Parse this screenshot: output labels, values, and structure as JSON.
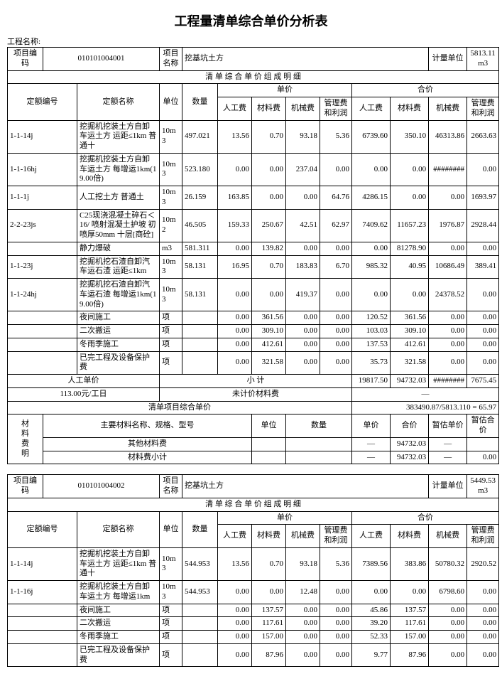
{
  "title": "工程量清单综合单价分析表",
  "project_label": "工程名称:",
  "labels": {
    "proj_code": "项目编码",
    "proj_name": "项目名称",
    "unit_meas": "计量单位",
    "detail_header": "清 单 综 合 单 价 组  成 明 细",
    "quota_no": "定额编号",
    "quota_name": "定额名称",
    "unit": "单位",
    "qty": "数量",
    "unit_price": "单价",
    "total_price": "合价",
    "labor": "人工费",
    "material": "材料费",
    "machine": "机械费",
    "mgmt": "管理费和利润",
    "labor_unit_price": "人工单价",
    "subtotal": "小   计",
    "uncounted": "未计价材料费",
    "comp_unit": "清单项目综合单价",
    "mat_detail": "材料费明",
    "main_mat": "主要材料名称、规格、型号",
    "mat_unit": "单位",
    "mat_qty": "数量",
    "mat_uprice": "单价",
    "mat_total": "合价",
    "mat_est_u": "暂估单价",
    "mat_est_t": "暂估合价",
    "other_mat": "其他材料费",
    "mat_sub": "材料费小计",
    "dash": "—"
  },
  "t1": {
    "code": "010101004001",
    "name": "挖基坑土方",
    "meas": "5813.11m3",
    "rows": [
      {
        "no": "1-1-14j",
        "name": "挖掘机挖装土方自卸车运土方 运距≤1km 普通十",
        "u": "10m3",
        "q": "497.021",
        "a": "13.56",
        "b": "0.70",
        "c": "93.18",
        "d": "5.36",
        "e": "6739.60",
        "f": "350.10",
        "g": "46313.86",
        "h": "2663.63"
      },
      {
        "no": "1-1-16hj",
        "name": "挖掘机挖装土方自卸车运土方 每增运1km(19.00倍)",
        "u": "10m3",
        "q": "523.180",
        "a": "0.00",
        "b": "0.00",
        "c": "237.04",
        "d": "0.00",
        "e": "0.00",
        "f": "0.00",
        "g": "########",
        "h": "0.00"
      },
      {
        "no": "1-1-1j",
        "name": "人工挖土方 普通土",
        "u": "10m3",
        "q": "26.159",
        "a": "163.85",
        "b": "0.00",
        "c": "0.00",
        "d": "64.76",
        "e": "4286.15",
        "f": "0.00",
        "g": "0.00",
        "h": "1693.97"
      },
      {
        "no": "2-2-23js",
        "name": "C25现浇混凝土碎石＜16/ 喷射混凝土护坡 初喷厚50mm 十层[商砼]",
        "u": "10m2",
        "q": "46.505",
        "a": "159.33",
        "b": "250.67",
        "c": "42.51",
        "d": "62.97",
        "e": "7409.62",
        "f": "11657.23",
        "g": "1976.87",
        "h": "2928.44"
      },
      {
        "no": "",
        "name": "静力爆破",
        "u": "m3",
        "q": "581.311",
        "a": "0.00",
        "b": "139.82",
        "c": "0.00",
        "d": "0.00",
        "e": "0.00",
        "f": "81278.90",
        "g": "0.00",
        "h": "0.00"
      },
      {
        "no": "1-1-23j",
        "name": "挖掘机挖石渣自卸汽车运石渣 运距≤1km",
        "u": "10m3",
        "q": "58.131",
        "a": "16.95",
        "b": "0.70",
        "c": "183.83",
        "d": "6.70",
        "e": "985.32",
        "f": "40.95",
        "g": "10686.49",
        "h": "389.41"
      },
      {
        "no": "1-1-24hj",
        "name": "挖掘机挖石渣自卸汽车运石渣 每增运1km(19.00倍)",
        "u": "10m3",
        "q": "58.131",
        "a": "0.00",
        "b": "0.00",
        "c": "419.37",
        "d": "0.00",
        "e": "0.00",
        "f": "0.00",
        "g": "24378.52",
        "h": "0.00"
      },
      {
        "no": "",
        "name": "夜间施工",
        "u": "项",
        "q": "",
        "a": "0.00",
        "b": "361.56",
        "c": "0.00",
        "d": "0.00",
        "e": "120.52",
        "f": "361.56",
        "g": "0.00",
        "h": "0.00"
      },
      {
        "no": "",
        "name": "二次搬运",
        "u": "项",
        "q": "",
        "a": "0.00",
        "b": "309.10",
        "c": "0.00",
        "d": "0.00",
        "e": "103.03",
        "f": "309.10",
        "g": "0.00",
        "h": "0.00"
      },
      {
        "no": "",
        "name": "冬雨季施工",
        "u": "项",
        "q": "",
        "a": "0.00",
        "b": "412.61",
        "c": "0.00",
        "d": "0.00",
        "e": "137.53",
        "f": "412.61",
        "g": "0.00",
        "h": "0.00"
      },
      {
        "no": "",
        "name": "已完工程及设备保护费",
        "u": "项",
        "q": "",
        "a": "0.00",
        "b": "321.58",
        "c": "0.00",
        "d": "0.00",
        "e": "35.73",
        "f": "321.58",
        "g": "0.00",
        "h": "0.00"
      }
    ],
    "labor_val": "113.00元/工日",
    "sub": {
      "e": "19817.50",
      "f": "94732.03",
      "g": "########",
      "h": "7675.45"
    },
    "comp_result": "383490.87/5813.110  = 65.97",
    "other_mat_total": "94732.03",
    "mat_sub_total": "94732.03",
    "mat_sub_est": "0.00"
  },
  "t2": {
    "code": "010101004002",
    "name": "挖基坑土方",
    "meas": "5449.53m3",
    "rows": [
      {
        "no": "1-1-14j",
        "name": "挖掘机挖装土方自卸车运土方 运距≤1km 普通十",
        "u": "10m3",
        "q": "544.953",
        "a": "13.56",
        "b": "0.70",
        "c": "93.18",
        "d": "5.36",
        "e": "7389.56",
        "f": "383.86",
        "g": "50780.32",
        "h": "2920.52"
      },
      {
        "no": "1-1-16j",
        "name": "挖掘机挖装土方自卸车运土方 每增运1km",
        "u": "10m3",
        "q": "544.953",
        "a": "0.00",
        "b": "0.00",
        "c": "12.48",
        "d": "0.00",
        "e": "0.00",
        "f": "0.00",
        "g": "6798.60",
        "h": "0.00"
      },
      {
        "no": "",
        "name": "夜间施工",
        "u": "项",
        "q": "",
        "a": "0.00",
        "b": "137.57",
        "c": "0.00",
        "d": "0.00",
        "e": "45.86",
        "f": "137.57",
        "g": "0.00",
        "h": "0.00"
      },
      {
        "no": "",
        "name": "二次搬运",
        "u": "项",
        "q": "",
        "a": "0.00",
        "b": "117.61",
        "c": "0.00",
        "d": "0.00",
        "e": "39.20",
        "f": "117.61",
        "g": "0.00",
        "h": "0.00"
      },
      {
        "no": "",
        "name": "冬雨季施工",
        "u": "项",
        "q": "",
        "a": "0.00",
        "b": "157.00",
        "c": "0.00",
        "d": "0.00",
        "e": "52.33",
        "f": "157.00",
        "g": "0.00",
        "h": "0.00"
      },
      {
        "no": "",
        "name": "已完工程及设备保护费",
        "u": "项",
        "q": "",
        "a": "0.00",
        "b": "87.96",
        "c": "0.00",
        "d": "0.00",
        "e": "9.77",
        "f": "87.96",
        "g": "0.00",
        "h": "0.00"
      }
    ]
  }
}
